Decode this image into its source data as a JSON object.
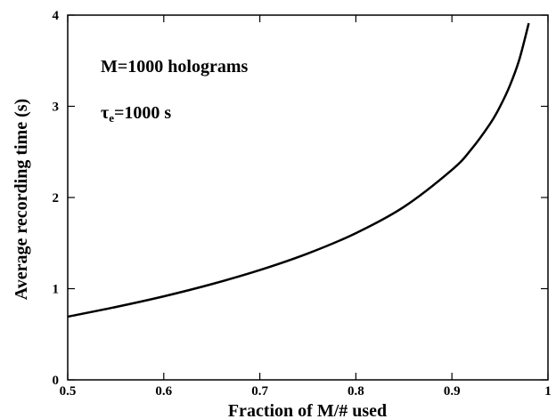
{
  "chart_data": {
    "type": "line",
    "title": "",
    "xlabel": "Fraction of M/# used",
    "ylabel": "Average recording time (s)",
    "xlim": [
      0.5,
      1.0
    ],
    "ylim": [
      0,
      4
    ],
    "x_ticks": [
      0.5,
      0.6,
      0.7,
      0.8,
      0.9,
      1.0
    ],
    "x_tick_labels": [
      "0.5",
      "0.6",
      "0.7",
      "0.8",
      "0.9",
      "1"
    ],
    "y_ticks": [
      0,
      1,
      2,
      3,
      4
    ],
    "y_tick_labels": [
      "0",
      "1",
      "2",
      "3",
      "4"
    ],
    "grid": false,
    "annotations": {
      "line1": "M=1000 holograms",
      "line2_symbol": "τ",
      "line2_subscript": "e",
      "line2_rest": "=1000 s"
    },
    "series": [
      {
        "color": "#000000",
        "x": [
          0.5,
          0.55,
          0.6,
          0.65,
          0.7,
          0.75,
          0.8,
          0.85,
          0.9,
          0.92,
          0.94,
          0.95,
          0.96,
          0.97,
          0.98
        ],
        "y": [
          0.693,
          0.799,
          0.916,
          1.05,
          1.204,
          1.386,
          1.609,
          1.897,
          2.303,
          2.526,
          2.813,
          2.996,
          3.219,
          3.507,
          3.912
        ]
      }
    ]
  }
}
